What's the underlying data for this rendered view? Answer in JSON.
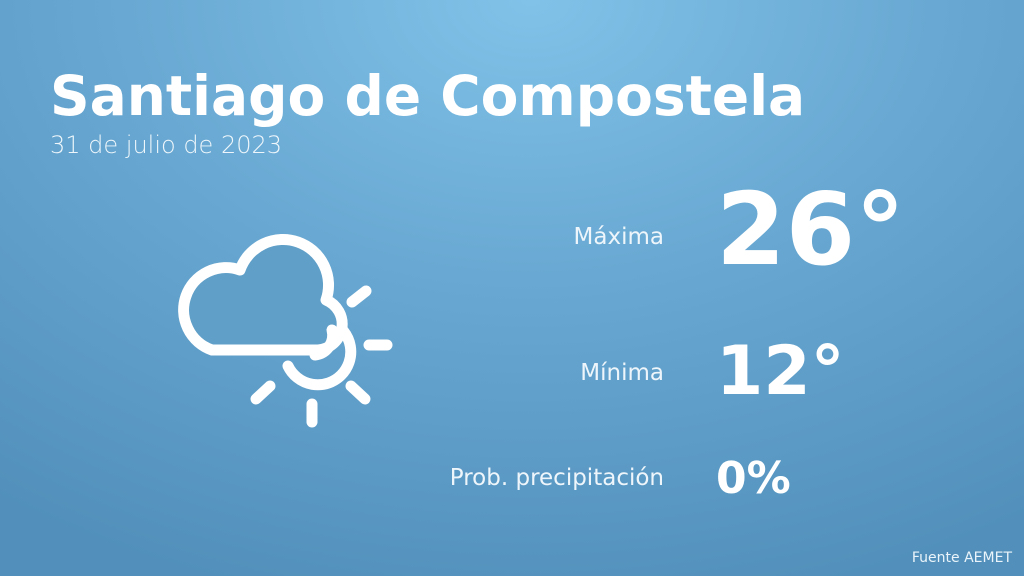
{
  "city": "Santiago de Compostela",
  "date": "31 de julio de 2023",
  "weather_icon": "cloud-sun-icon",
  "stats": [
    {
      "label": "Máxima",
      "value": "26°"
    },
    {
      "label": "Mínima",
      "value": "12°"
    },
    {
      "label": "Prob. precipitación",
      "value": "0%"
    }
  ],
  "source": "Fuente AEMET",
  "colors": {
    "background_top": "#80c2e8",
    "background_edge": "#5290bb",
    "text": "#ffffff"
  }
}
